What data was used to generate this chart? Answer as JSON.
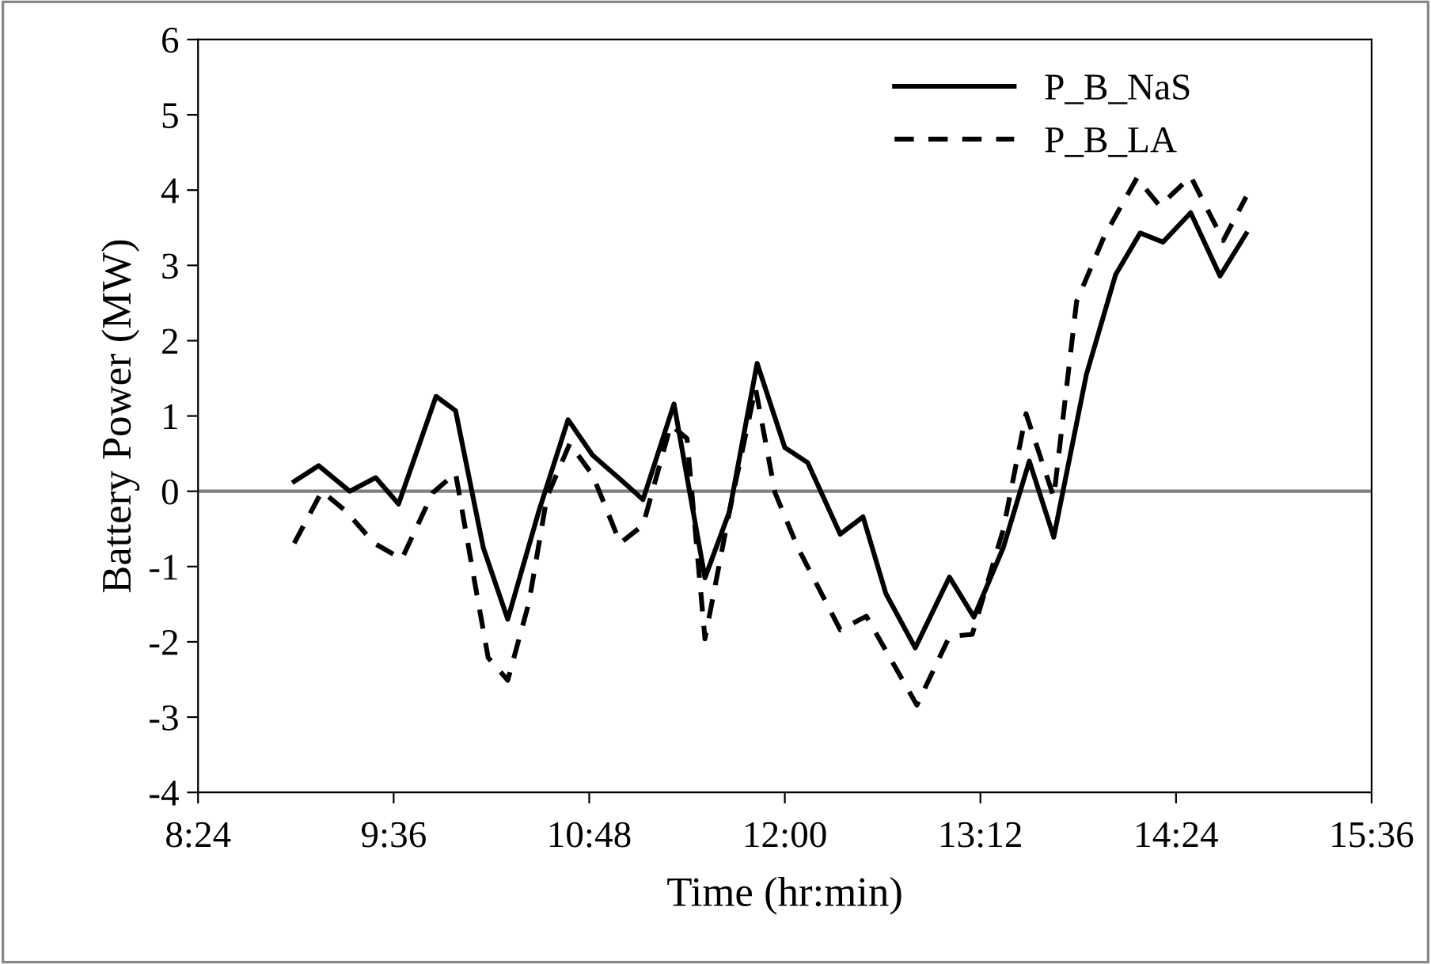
{
  "chart_data": {
    "type": "line",
    "xlabel": "Time (hr:min)",
    "ylabel": "Battery Power (MW)",
    "xlim": [
      8.4,
      15.6
    ],
    "xticks": [
      {
        "value": 8.4,
        "label": "8:24"
      },
      {
        "value": 9.6,
        "label": "9:36"
      },
      {
        "value": 10.8,
        "label": "10:48"
      },
      {
        "value": 12,
        "label": "12:00"
      },
      {
        "value": 13.2,
        "label": "13:12"
      },
      {
        "value": 14.4,
        "label": "14:24"
      },
      {
        "value": 15.6,
        "label": "15:36"
      }
    ],
    "ylim": [
      -4,
      6
    ],
    "yticks": [
      -4,
      -3,
      -2,
      -1,
      0,
      1,
      2,
      3,
      4,
      5,
      6
    ],
    "grid": false,
    "legend": "top",
    "ref_lines": [
      {
        "axis": "y",
        "value": 0,
        "label": null,
        "color": "#808080"
      }
    ],
    "series": [
      {
        "name": "P_B_NaS",
        "color": "#000000",
        "line_style": "solid",
        "x": [
          8.99,
          9.14,
          9.33,
          9.49,
          9.63,
          9.86,
          9.98,
          10.15,
          10.3,
          10.49,
          10.67,
          10.82,
          10.99,
          11.13,
          11.32,
          11.51,
          11.66,
          11.83,
          12.0,
          12.14,
          12.34,
          12.48,
          12.62,
          12.8,
          13.01,
          13.16,
          13.34,
          13.5,
          13.65,
          13.85,
          14.03,
          14.18,
          14.32,
          14.49,
          14.67,
          14.83
        ],
        "values": [
          0.13,
          0.34,
          0.0,
          0.18,
          -0.17,
          1.26,
          1.07,
          -0.75,
          -1.7,
          -0.27,
          0.95,
          0.48,
          0.16,
          -0.11,
          1.16,
          -1.15,
          -0.27,
          1.7,
          0.58,
          0.38,
          -0.57,
          -0.34,
          -1.36,
          -2.08,
          -1.14,
          -1.67,
          -0.75,
          0.4,
          -0.61,
          1.55,
          2.88,
          3.43,
          3.31,
          3.7,
          2.86,
          3.42
        ]
      },
      {
        "name": "P_B_LA",
        "color": "#000000",
        "line_style": "dashed",
        "x": [
          8.99,
          9.16,
          9.31,
          9.48,
          9.65,
          9.84,
          9.98,
          10.1,
          10.18,
          10.3,
          10.43,
          10.54,
          10.68,
          10.82,
          10.99,
          11.13,
          11.3,
          11.4,
          11.51,
          11.66,
          11.82,
          11.94,
          12.08,
          12.34,
          12.5,
          12.81,
          13.01,
          13.15,
          13.34,
          13.48,
          13.65,
          13.79,
          13.96,
          14.16,
          14.3,
          14.49,
          14.69,
          14.83
        ],
        "values": [
          -0.69,
          0.0,
          -0.27,
          -0.69,
          -0.9,
          -0.02,
          0.24,
          -1.24,
          -2.21,
          -2.51,
          -1.48,
          -0.08,
          0.63,
          0.22,
          -0.69,
          -0.45,
          0.88,
          0.7,
          -1.96,
          -0.27,
          1.37,
          -0.02,
          -0.75,
          -1.84,
          -1.66,
          -2.84,
          -1.93,
          -1.9,
          -0.51,
          1.03,
          -0.08,
          2.52,
          3.39,
          4.16,
          3.79,
          4.18,
          3.33,
          3.91
        ]
      }
    ]
  }
}
